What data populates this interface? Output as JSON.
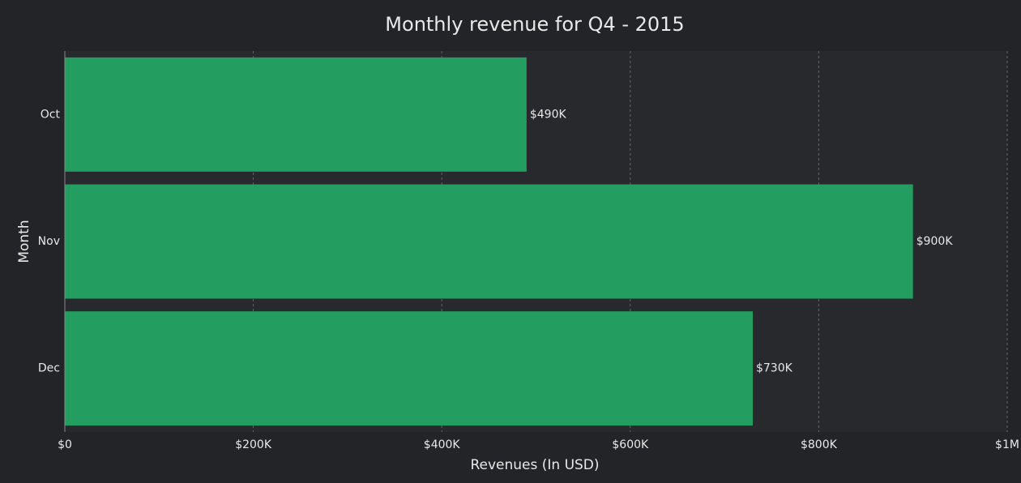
{
  "chart_data": {
    "type": "hbar",
    "title": "Monthly revenue for Q4 - 2015",
    "x_label": "Revenues (In USD)",
    "y_label": "Month",
    "categories": [
      "Oct",
      "Nov",
      "Dec"
    ],
    "values": [
      490000,
      900000,
      730000
    ],
    "value_labels": [
      "$490K",
      "$900K",
      "$730K"
    ],
    "color": "#239d60",
    "xlim": [
      0,
      1000000
    ],
    "xticks": [
      {
        "value": 0,
        "label": "$0"
      },
      {
        "value": 200000,
        "label": "$200K"
      },
      {
        "value": 400000,
        "label": "$400K"
      },
      {
        "value": 600000,
        "label": "$600K"
      },
      {
        "value": 800000,
        "label": "$800K"
      },
      {
        "value": 1000000,
        "label": "$1M"
      }
    ],
    "grid": true
  }
}
